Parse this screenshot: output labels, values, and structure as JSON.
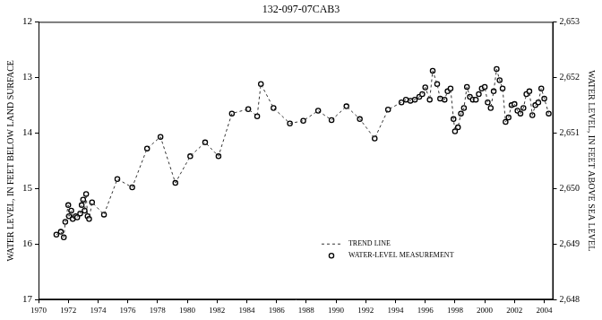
{
  "chart_data": {
    "type": "scatter",
    "title": "132-097-07CAB3",
    "y_label": "WATER LEVEL, IN FEET BELOW LAND SURFACE",
    "y2_label": "WATER LEVEL, IN FEET ABOVE SEA LEVEL",
    "x": [
      1971.2,
      1971.5,
      1971.7,
      1971.8,
      1972.0,
      1972.05,
      1972.2,
      1972.3,
      1972.5,
      1972.6,
      1972.8,
      1972.9,
      1973.0,
      1973.1,
      1973.2,
      1973.3,
      1973.4,
      1973.6,
      1974.4,
      1975.3,
      1976.3,
      1977.3,
      1978.2,
      1979.2,
      1980.2,
      1981.2,
      1982.1,
      1983.0,
      1984.1,
      1984.7,
      1984.95,
      1985.8,
      1986.9,
      1987.8,
      1988.8,
      1989.7,
      1990.7,
      1991.6,
      1992.6,
      1993.5,
      1994.4,
      1994.7,
      1995.0,
      1995.3,
      1995.6,
      1995.8,
      1996.0,
      1996.3,
      1996.5,
      1996.8,
      1997.0,
      1997.3,
      1997.5,
      1997.7,
      1997.9,
      1998.0,
      1998.2,
      1998.4,
      1998.6,
      1998.8,
      1999.0,
      1999.2,
      1999.4,
      1999.6,
      1999.8,
      2000.0,
      2000.2,
      2000.4,
      2000.6,
      2000.8,
      2001.0,
      2001.2,
      2001.4,
      2001.6,
      2001.8,
      2002.0,
      2002.2,
      2002.4,
      2002.6,
      2002.8,
      2003.0,
      2003.2,
      2003.4,
      2003.6,
      2003.8,
      2004.0,
      2004.3
    ],
    "series": [
      {
        "name": "TREND LINE",
        "color": "#333333",
        "line_style": "dashed",
        "marker": "none",
        "values": [
          15.83,
          15.78,
          15.88,
          15.6,
          15.3,
          15.5,
          15.4,
          15.55,
          15.5,
          15.52,
          15.45,
          15.3,
          15.2,
          15.4,
          15.1,
          15.5,
          15.55,
          15.25,
          15.47,
          14.83,
          14.98,
          14.28,
          14.07,
          14.9,
          14.42,
          14.17,
          14.42,
          13.65,
          13.57,
          13.7,
          13.12,
          13.55,
          13.83,
          13.78,
          13.6,
          13.77,
          13.52,
          13.75,
          14.1,
          13.58,
          13.45,
          13.4,
          13.42,
          13.4,
          13.35,
          13.3,
          13.18,
          13.4,
          12.88,
          13.12,
          13.38,
          13.4,
          13.25,
          13.2,
          13.75,
          13.97,
          13.9,
          13.65,
          13.55,
          13.17,
          13.35,
          13.4,
          13.4,
          13.3,
          13.2,
          13.17,
          13.45,
          13.55,
          13.25,
          12.85,
          13.05,
          13.2,
          13.8,
          13.72,
          13.5,
          13.48,
          13.6,
          13.65,
          13.55,
          13.3,
          13.25,
          13.68,
          13.5,
          13.45,
          13.2,
          13.38,
          13.65
        ]
      },
      {
        "name": "WATER-LEVEL MEASUREMENT",
        "color": "#000000",
        "line_style": "none",
        "marker": "circle",
        "values": [
          15.83,
          15.78,
          15.88,
          15.6,
          15.3,
          15.5,
          15.4,
          15.55,
          15.5,
          15.52,
          15.45,
          15.3,
          15.2,
          15.4,
          15.1,
          15.5,
          15.55,
          15.25,
          15.47,
          14.83,
          14.98,
          14.28,
          14.07,
          14.9,
          14.42,
          14.17,
          14.42,
          13.65,
          13.57,
          13.7,
          13.12,
          13.55,
          13.83,
          13.78,
          13.6,
          13.77,
          13.52,
          13.75,
          14.1,
          13.58,
          13.45,
          13.4,
          13.42,
          13.4,
          13.35,
          13.3,
          13.18,
          13.4,
          12.88,
          13.12,
          13.38,
          13.4,
          13.25,
          13.2,
          13.75,
          13.97,
          13.9,
          13.65,
          13.55,
          13.17,
          13.35,
          13.4,
          13.4,
          13.3,
          13.2,
          13.17,
          13.45,
          13.55,
          13.25,
          12.85,
          13.05,
          13.2,
          13.8,
          13.72,
          13.5,
          13.48,
          13.6,
          13.65,
          13.55,
          13.3,
          13.25,
          13.68,
          13.5,
          13.45,
          13.2,
          13.38,
          13.65
        ]
      }
    ],
    "xlim": [
      1970,
      2004.6
    ],
    "xticks": [
      1970,
      1972,
      1974,
      1976,
      1978,
      1980,
      1982,
      1984,
      1986,
      1988,
      1990,
      1992,
      1994,
      1996,
      1998,
      2000,
      2002,
      2004
    ],
    "ylim": [
      17,
      12
    ],
    "yticks": [
      12,
      13,
      14,
      15,
      16,
      17
    ],
    "y2lim": [
      2648,
      2653
    ],
    "y2ticks": [
      {
        "value": 2648,
        "label": "2,648"
      },
      {
        "value": 2649,
        "label": "2,649"
      },
      {
        "value": 2650,
        "label": "2,650"
      },
      {
        "value": 2651,
        "label": "2,651"
      },
      {
        "value": 2652,
        "label": "2,652"
      },
      {
        "value": 2653,
        "label": "2,653"
      }
    ],
    "grid": false,
    "legend": "lower right"
  }
}
